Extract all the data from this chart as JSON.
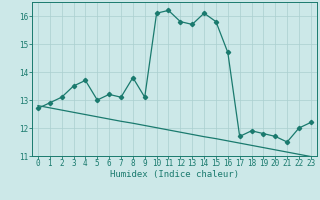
{
  "x": [
    0,
    1,
    2,
    3,
    4,
    5,
    6,
    7,
    8,
    9,
    10,
    11,
    12,
    13,
    14,
    15,
    16,
    17,
    18,
    19,
    20,
    21,
    22,
    23
  ],
  "y_curve": [
    12.7,
    12.9,
    13.1,
    13.5,
    13.7,
    13.0,
    13.2,
    13.1,
    13.8,
    13.1,
    16.1,
    16.2,
    15.8,
    15.7,
    16.1,
    15.8,
    14.7,
    11.7,
    11.9,
    11.8,
    11.7,
    11.5,
    12.0,
    12.2
  ],
  "y_line": [
    12.8,
    12.72,
    12.64,
    12.56,
    12.48,
    12.4,
    12.32,
    12.24,
    12.17,
    12.09,
    12.01,
    11.93,
    11.85,
    11.77,
    11.69,
    11.62,
    11.54,
    11.46,
    11.38,
    11.3,
    11.22,
    11.14,
    11.06,
    10.98
  ],
  "bg_color": "#cce8e8",
  "line_color": "#1a7a6e",
  "grid_major_color": "#aacfcf",
  "grid_minor_color": "#c0dddd",
  "xlabel": "Humidex (Indice chaleur)",
  "ylim": [
    11,
    16.5
  ],
  "xlim": [
    -0.5,
    23.5
  ],
  "yticks": [
    11,
    12,
    13,
    14,
    15,
    16
  ],
  "xticks": [
    0,
    1,
    2,
    3,
    4,
    5,
    6,
    7,
    8,
    9,
    10,
    11,
    12,
    13,
    14,
    15,
    16,
    17,
    18,
    19,
    20,
    21,
    22,
    23
  ],
  "tick_fontsize": 5.5,
  "xlabel_fontsize": 6.5
}
